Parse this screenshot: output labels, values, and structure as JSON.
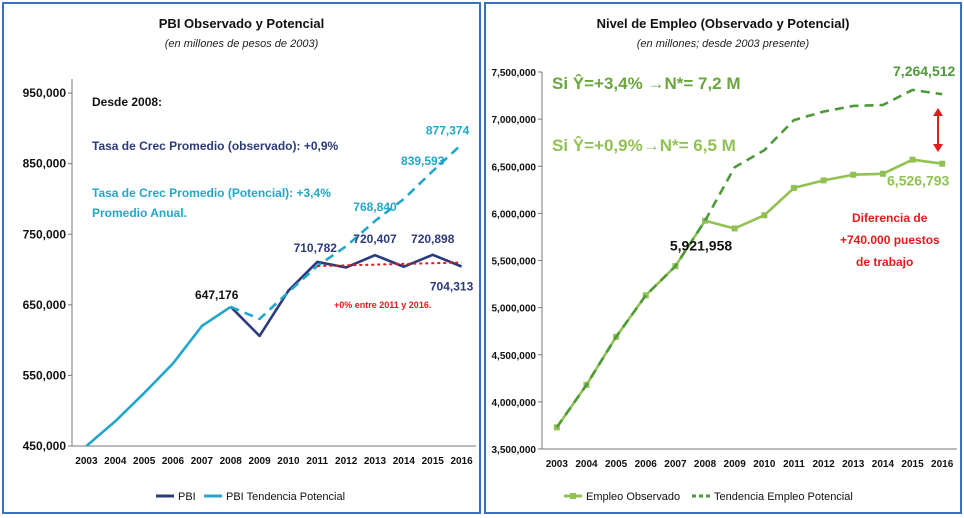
{
  "chart_data": [
    {
      "type": "line",
      "title": "PBI Observado y Potencial",
      "subtitle": "(en millones de pesos de 2003)",
      "x": [
        "2003",
        "2004",
        "2005",
        "2006",
        "2007",
        "2008",
        "2009",
        "2010",
        "2011",
        "2012",
        "2013",
        "2014",
        "2015",
        "2016"
      ],
      "ylim": [
        450000,
        970000
      ],
      "yticks": [
        450000,
        550000,
        650000,
        750000,
        850000,
        950000
      ],
      "ytick_labels": [
        "450,000",
        "550,000",
        "650,000",
        "750,000",
        "850,000",
        "950,000"
      ],
      "series": [
        {
          "name": "PBI",
          "color": "#2b3a7a",
          "style": "solid",
          "values": [
            null,
            null,
            null,
            null,
            null,
            647176,
            606000,
            670000,
            710782,
            703000,
            720407,
            704000,
            720898,
            704313
          ]
        },
        {
          "name": "PBI Tendencia Potencial",
          "color": "#23a6c9",
          "style": "solid",
          "values": [
            450000,
            485000,
            525000,
            567000,
            620000,
            647176,
            null,
            null,
            null,
            null,
            null,
            null,
            null,
            null
          ]
        },
        {
          "name": "",
          "color": "#23a6c9",
          "style": "dashed",
          "values": [
            null,
            null,
            null,
            null,
            null,
            647176,
            630000,
            668000,
            705000,
            733000,
            768840,
            800000,
            839593,
            877374
          ]
        },
        {
          "name": "",
          "color": "#e41a1c",
          "style": "dotted",
          "values": [
            null,
            null,
            null,
            null,
            null,
            null,
            null,
            null,
            705000,
            706000,
            707000,
            708000,
            709000,
            710000
          ]
        }
      ],
      "data_labels": [
        {
          "text": "647,176",
          "x": "2008",
          "y": 647176,
          "color": "#111111"
        },
        {
          "text": "710,782",
          "x": "2011",
          "y": 710782,
          "color": "#2b3a7a"
        },
        {
          "text": "720,407",
          "x": "2013",
          "y": 720407,
          "color": "#2b3a7a"
        },
        {
          "text": "720,898",
          "x": "2015",
          "y": 720898,
          "color": "#2b3a7a"
        },
        {
          "text": "704,313",
          "x": "2016",
          "y": 704313,
          "color": "#2b3a7a"
        },
        {
          "text": "768,840",
          "x": "2013",
          "y": 768840,
          "color": "#23a6c9"
        },
        {
          "text": "839,593",
          "x": "2015",
          "y": 839593,
          "color": "#23a6c9"
        },
        {
          "text": "877,374",
          "x": "2016",
          "y": 877374,
          "color": "#23a6c9"
        }
      ],
      "annotations": {
        "desde": "Desde 2008:",
        "obs": "Tasa de Crec  Promedio  (observado): +0,9%",
        "pot1": "Tasa de Crec Promedio (Potencial):  +3,4%",
        "pot2": "Promedio Anual.",
        "flat": "+0% entre 2011 y 2016."
      },
      "legend": [
        "PBI",
        "PBI Tendencia Potencial"
      ],
      "legend_position": "bottom"
    },
    {
      "type": "line",
      "title": "Nivel de Empleo (Observado y Potencial)",
      "subtitle": "(en millones; desde 2003 presente)",
      "x": [
        "2003",
        "2004",
        "2005",
        "2006",
        "2007",
        "2008",
        "2009",
        "2010",
        "2011",
        "2012",
        "2013",
        "2014",
        "2015",
        "2016"
      ],
      "ylim": [
        3500000,
        7500000
      ],
      "yticks": [
        3500000,
        4000000,
        4500000,
        5000000,
        5500000,
        6000000,
        6500000,
        7000000,
        7500000
      ],
      "ytick_labels": [
        "3,500,000",
        "4,000,000",
        "4,500,000",
        "5,000,000",
        "5,500,000",
        "6,000,000",
        "6,500,000",
        "7,000,000",
        "7,500,000"
      ],
      "series": [
        {
          "name": "Empleo Observado",
          "color": "#92c153",
          "style": "solid-markers",
          "values": [
            3730000,
            4180000,
            4690000,
            5130000,
            5440000,
            5921958,
            5840000,
            5980000,
            6270000,
            6350000,
            6410000,
            6420000,
            6570000,
            6526793
          ]
        },
        {
          "name": "Tendencia Empleo Potencial",
          "color": "#4e9a3a",
          "style": "dashed",
          "values": [
            3730000,
            4180000,
            4690000,
            5130000,
            5440000,
            5921958,
            6490000,
            6670000,
            6990000,
            7080000,
            7140000,
            7150000,
            7310000,
            7264512
          ]
        }
      ],
      "data_labels": [
        {
          "text": "5,921,958",
          "x": "2008",
          "y": 5921958,
          "color": "#111111"
        },
        {
          "text": "7,264,512",
          "x": "2016",
          "y": 7264512,
          "color": "#4e9a3a"
        },
        {
          "text": "6,526,793",
          "x": "2016",
          "y": 6526793,
          "color": "#92c153"
        }
      ],
      "annotations": {
        "scen1": "Si Ŷ=+3,4% →N*= 7,2  M",
        "scen2": "Si Ŷ=+0,9%→N*= 6,5  M",
        "diff1": "Diferencia de",
        "diff2": "+740.000 puestos",
        "diff3": "de trabajo"
      },
      "legend": [
        "Empleo Observado",
        "Tendencia Empleo Potencial"
      ],
      "legend_position": "bottom"
    }
  ]
}
